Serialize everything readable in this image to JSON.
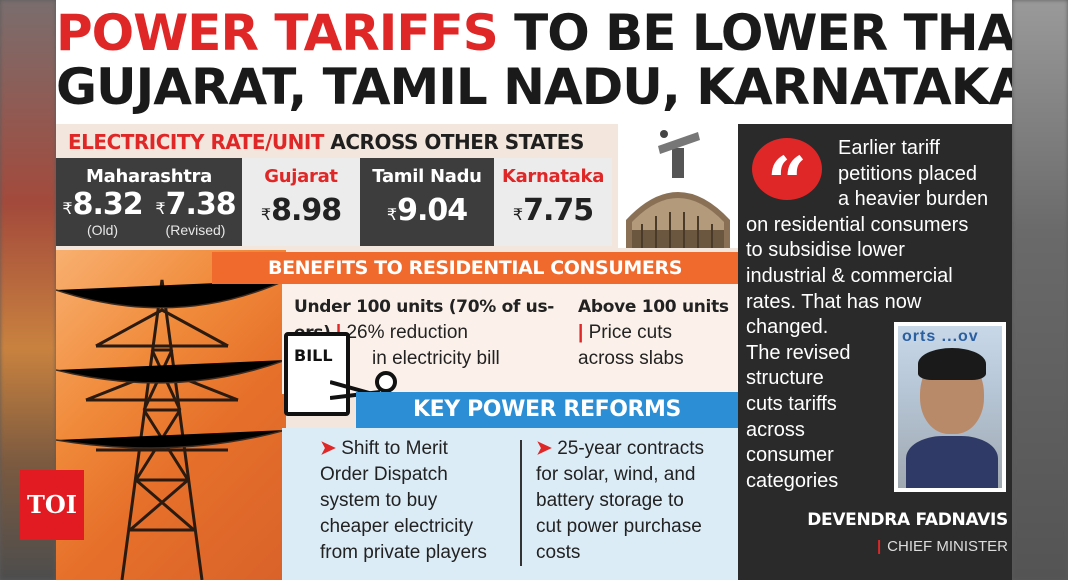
{
  "headline": {
    "line1_red": "POWER TARIFFS",
    "line1_black": " TO BE LOWER THAN",
    "line2": "GUJARAT, TAMIL NADU, KARNATAKA"
  },
  "rates_section": {
    "title_red": "ELECTRICITY RATE/UNIT",
    "title_black": " ACROSS OTHER STATES",
    "currency": "₹",
    "states": [
      {
        "name": "Maharashtra",
        "old_value": "8.32",
        "old_label": "(Old)",
        "revised_value": "7.38",
        "revised_label": "(Revised)"
      },
      {
        "name": "Gujarat",
        "value": "8.98"
      },
      {
        "name": "Tamil Nadu",
        "value": "9.04"
      },
      {
        "name": "Karnataka",
        "value": "7.75"
      }
    ]
  },
  "benefits": {
    "title": "BENEFITS TO RESIDENTIAL CONSUMERS",
    "items": [
      {
        "heading": "Under 100 units (70% of us-",
        "heading2": "ers)",
        "detail1": "26% reduction",
        "detail2": "in electricity bill"
      },
      {
        "heading": "Above 100 units",
        "detail1": "Price cuts",
        "detail2": "across slabs"
      }
    ],
    "bill_label": "BILL"
  },
  "reforms": {
    "title": "KEY POWER REFORMS",
    "items": [
      {
        "lines": [
          "Shift to Merit",
          "Order Dispatch",
          "system to buy",
          "cheaper electricity",
          "from private players"
        ]
      },
      {
        "lines": [
          "25-year contracts",
          "for solar, wind, and",
          "battery storage to",
          "cut power purchase",
          "costs"
        ]
      }
    ]
  },
  "quote": {
    "lines_indented": [
      "Earlier tariff",
      "petitions placed",
      "a heavier burden"
    ],
    "lines_full": [
      "on residential consumers",
      "to subsidise lower",
      "industrial & commercial",
      "rates. That has now",
      "changed."
    ],
    "lines_short": [
      "The revised",
      "structure",
      "cuts tariffs",
      "across",
      "consumer",
      "categories"
    ],
    "name": "DEVENDRA FADNAVIS",
    "role": "CHIEF MINISTER",
    "portrait_text": "orts ...ov"
  },
  "logo": {
    "text": "TOI"
  },
  "colors": {
    "red": "#e02727",
    "orange": "#f06a2e",
    "blue": "#2c8fd6",
    "dark": "#2a2a2a"
  }
}
